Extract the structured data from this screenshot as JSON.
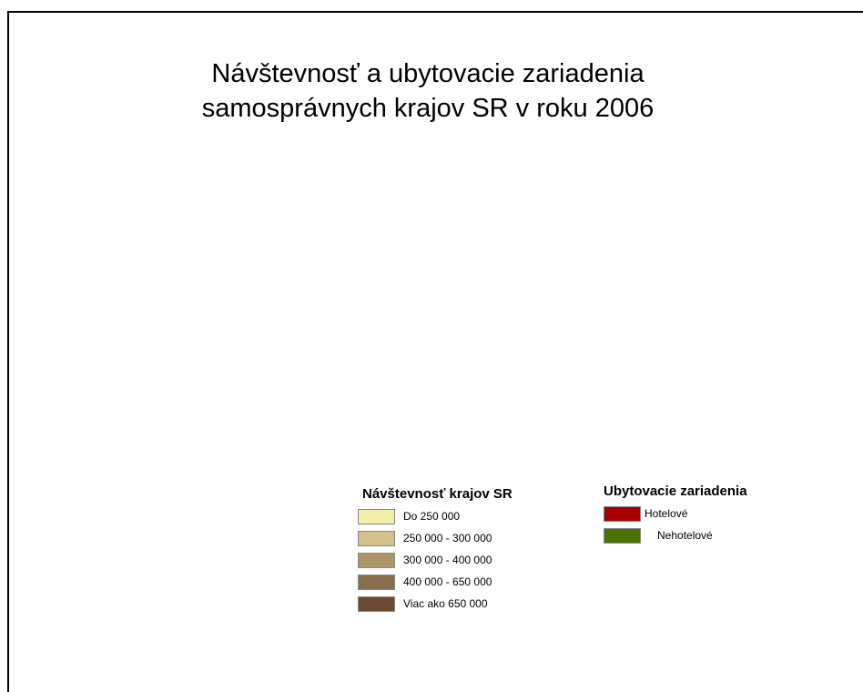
{
  "map": {
    "title_lines": [
      "Návštevnosť a ubytovacie zariadenia",
      "samosprávnych krajov SR v roku 2006"
    ],
    "legends": [
      {
        "title": "Návštevnosť krajov SR",
        "items": [
          {
            "label": "Do 250 000",
            "color": "#f4eeab"
          },
          {
            "label": "250 000 - 300 000",
            "color": "#d3c08b"
          },
          {
            "label": "300 000 - 400 000",
            "color": "#ae9569"
          },
          {
            "label": "400 000 - 650 000",
            "color": "#8a6e50"
          },
          {
            "label": "Viac ako 650 000",
            "color": "#6a4a33"
          }
        ]
      },
      {
        "title": "Ubytovacie zariadenia",
        "items": [
          {
            "label": "Hotelové",
            "color": "#a80000"
          },
          {
            "label": "Nehotelové",
            "color": "#4c7300"
          }
        ]
      }
    ]
  }
}
